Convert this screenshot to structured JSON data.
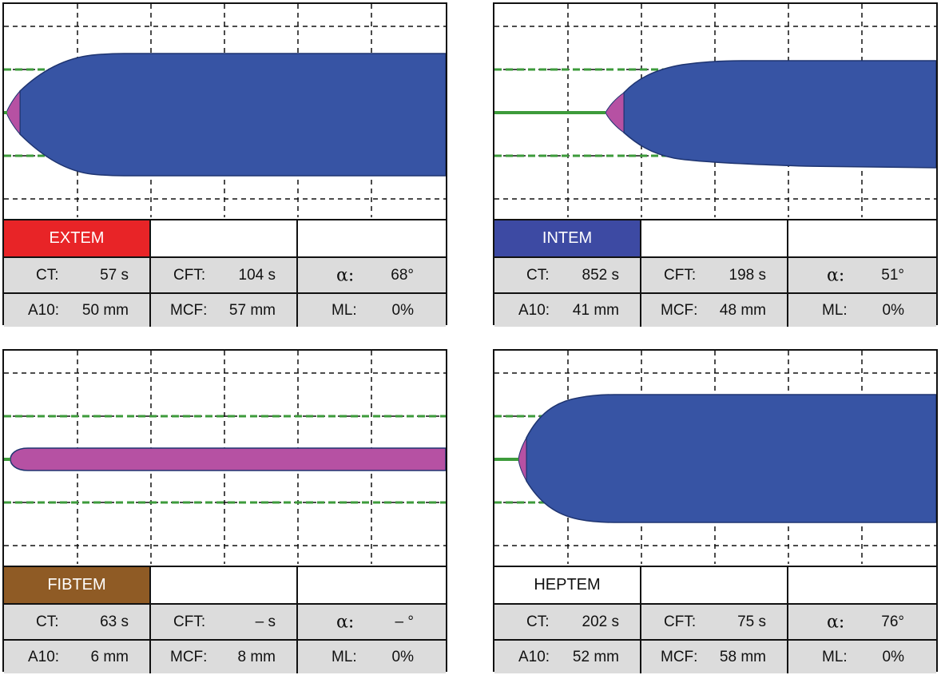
{
  "colors": {
    "EXTEM": "#e82427",
    "INTEM": "#3d4aa3",
    "FIBTEM": "#8f5b25",
    "HEPTEM": "#ffffff",
    "clot": "#3754a4",
    "early": "#b651a3",
    "ref": "#3d9b3b"
  },
  "panels": [
    {
      "name": "EXTEM",
      "ct": "57 s",
      "cft": "104 s",
      "alpha": "68°",
      "a10": "50 mm",
      "mcf": "57 mm",
      "ml": "0%",
      "ct_label": "CT:",
      "cft_label": "CFT:",
      "alpha_label": "α:",
      "a10_label": "A10:",
      "mcf_label": "MCF:",
      "ml_label": "ML:"
    },
    {
      "name": "INTEM",
      "ct": "852 s",
      "cft": "198 s",
      "alpha": "51°",
      "a10": "41 mm",
      "mcf": "48 mm",
      "ml": "0%",
      "ct_label": "CT:",
      "cft_label": "CFT:",
      "alpha_label": "α:",
      "a10_label": "A10:",
      "mcf_label": "MCF:",
      "ml_label": "ML:"
    },
    {
      "name": "FIBTEM",
      "ct": "63 s",
      "cft": "– s",
      "alpha": "– °",
      "a10": "6 mm",
      "mcf": "8 mm",
      "ml": "0%",
      "ct_label": "CT:",
      "cft_label": "CFT:",
      "alpha_label": "α:",
      "a10_label": "A10:",
      "mcf_label": "MCF:",
      "ml_label": "ML:"
    },
    {
      "name": "HEPTEM",
      "ct": "202 s",
      "cft": "75 s",
      "alpha": "76°",
      "a10": "52 mm",
      "mcf": "58 mm",
      "ml": "0%",
      "ct_label": "CT:",
      "cft_label": "CFT:",
      "alpha_label": "α:",
      "a10_label": "A10:",
      "mcf_label": "MCF:",
      "ml_label": "ML:"
    }
  ]
}
